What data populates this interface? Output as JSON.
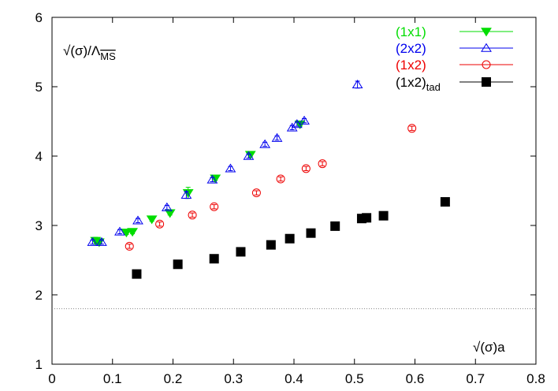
{
  "chart_data": {
    "type": "scatter",
    "xlabel": "√(σ)a",
    "ylabel": "√(σ)/Λ",
    "ylabel_sub": "MS",
    "xlim": [
      0,
      0.8
    ],
    "ylim": [
      1,
      6
    ],
    "x_ticks": [
      "0",
      "0.1",
      "0.2",
      "0.3",
      "0.4",
      "0.5",
      "0.6",
      "0.7",
      "0.8"
    ],
    "y_ticks": [
      "1",
      "2",
      "3",
      "4",
      "5",
      "6"
    ],
    "x_tick_values": [
      0,
      0.1,
      0.2,
      0.3,
      0.4,
      0.5,
      0.6,
      0.7,
      0.8
    ],
    "y_tick_values": [
      1,
      2,
      3,
      4,
      5,
      6
    ],
    "reference_line": {
      "y": 1.8,
      "style": "dotted",
      "color": "#888888"
    },
    "legend_placement": "top-right",
    "series": [
      {
        "name": "(1x1)",
        "name_sub": "",
        "color": "#00dd00",
        "marker": "filled-triangle-down",
        "points": [
          {
            "x": 0.072,
            "y": 2.78,
            "err": 0.05
          },
          {
            "x": 0.078,
            "y": 2.76,
            "err": 0.03
          },
          {
            "x": 0.123,
            "y": 2.9,
            "err": 0.03
          },
          {
            "x": 0.133,
            "y": 2.91,
            "err": 0.03
          },
          {
            "x": 0.165,
            "y": 3.09,
            "err": 0.03
          },
          {
            "x": 0.195,
            "y": 3.18,
            "err": 0.03
          },
          {
            "x": 0.225,
            "y": 3.47,
            "err": 0.08
          },
          {
            "x": 0.27,
            "y": 3.68,
            "err": 0.03
          },
          {
            "x": 0.328,
            "y": 4.02,
            "err": 0.03
          },
          {
            "x": 0.41,
            "y": 4.46,
            "err": 0.03
          }
        ]
      },
      {
        "name": "(2x2)",
        "name_sub": "",
        "color": "#0000ee",
        "marker": "open-triangle-up",
        "points": [
          {
            "x": 0.067,
            "y": 2.76,
            "err": 0.03
          },
          {
            "x": 0.082,
            "y": 2.76,
            "err": 0.03
          },
          {
            "x": 0.112,
            "y": 2.91,
            "err": 0.03
          },
          {
            "x": 0.142,
            "y": 3.07,
            "err": 0.03
          },
          {
            "x": 0.19,
            "y": 3.26,
            "err": 0.03
          },
          {
            "x": 0.222,
            "y": 3.44,
            "err": 0.05
          },
          {
            "x": 0.265,
            "y": 3.66,
            "err": 0.03
          },
          {
            "x": 0.295,
            "y": 3.82,
            "err": 0.03
          },
          {
            "x": 0.325,
            "y": 4.0,
            "err": 0.03
          },
          {
            "x": 0.352,
            "y": 4.17,
            "err": 0.03
          },
          {
            "x": 0.372,
            "y": 4.26,
            "err": 0.03
          },
          {
            "x": 0.397,
            "y": 4.41,
            "err": 0.03
          },
          {
            "x": 0.405,
            "y": 4.46,
            "err": 0.03
          },
          {
            "x": 0.417,
            "y": 4.51,
            "err": 0.03
          },
          {
            "x": 0.505,
            "y": 5.03,
            "err": 0.05
          }
        ]
      },
      {
        "name": "(1x2)",
        "name_sub": "",
        "color": "#ee0000",
        "marker": "open-circle",
        "points": [
          {
            "x": 0.128,
            "y": 2.7,
            "err": 0.03
          },
          {
            "x": 0.178,
            "y": 3.02,
            "err": 0.03
          },
          {
            "x": 0.232,
            "y": 3.15,
            "err": 0.03
          },
          {
            "x": 0.268,
            "y": 3.27,
            "err": 0.03
          },
          {
            "x": 0.338,
            "y": 3.47,
            "err": 0.03
          },
          {
            "x": 0.378,
            "y": 3.67,
            "err": 0.03
          },
          {
            "x": 0.42,
            "y": 3.82,
            "err": 0.03
          },
          {
            "x": 0.447,
            "y": 3.89,
            "err": 0.03
          },
          {
            "x": 0.595,
            "y": 4.4,
            "err": 0.03
          }
        ]
      },
      {
        "name": "(1x2)",
        "name_sub": "tad",
        "color": "#000000",
        "marker": "filled-square",
        "points": [
          {
            "x": 0.14,
            "y": 2.3
          },
          {
            "x": 0.208,
            "y": 2.44
          },
          {
            "x": 0.268,
            "y": 2.52
          },
          {
            "x": 0.312,
            "y": 2.62
          },
          {
            "x": 0.362,
            "y": 2.72
          },
          {
            "x": 0.393,
            "y": 2.81
          },
          {
            "x": 0.428,
            "y": 2.89
          },
          {
            "x": 0.468,
            "y": 2.99
          },
          {
            "x": 0.512,
            "y": 3.1
          },
          {
            "x": 0.52,
            "y": 3.11
          },
          {
            "x": 0.548,
            "y": 3.14
          },
          {
            "x": 0.65,
            "y": 3.34
          }
        ]
      }
    ]
  }
}
